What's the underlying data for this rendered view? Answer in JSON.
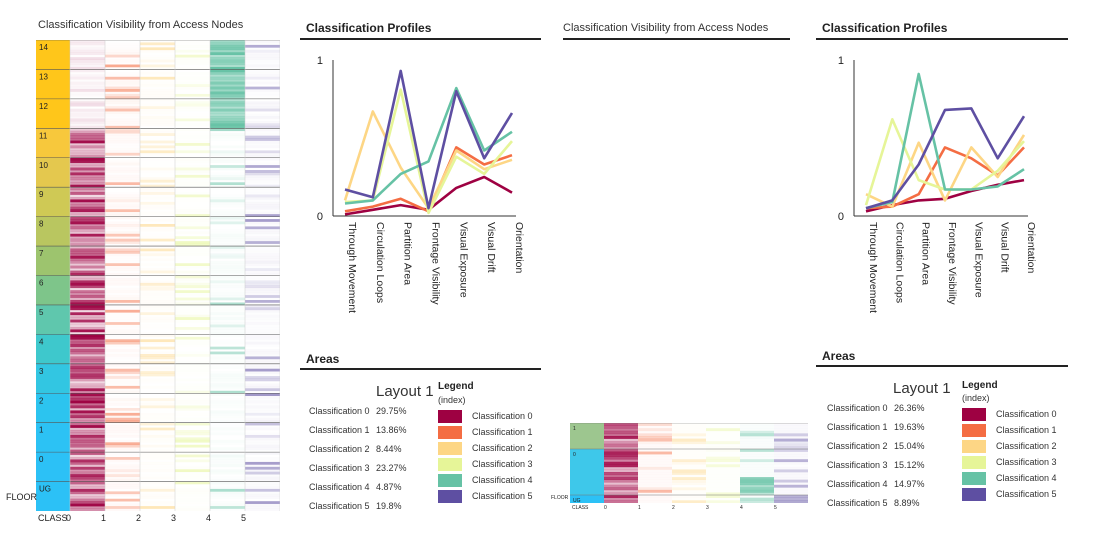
{
  "left_heatmap": {
    "title": "Classification Visibility from Access Nodes",
    "floor_label": "FLOOR",
    "class_label": "CLASS",
    "floors": [
      "14",
      "13",
      "12",
      "11",
      "10",
      "9",
      "8",
      "7",
      "6",
      "5",
      "4",
      "3",
      "2",
      "1",
      "0",
      "UG"
    ],
    "classes": [
      "0",
      "1",
      "2",
      "3",
      "4",
      "5"
    ]
  },
  "middle_heatmap": {
    "title": "Classification Visibility from Access Nodes",
    "floor_label": "FLOOR",
    "class_label": "CLASS",
    "floors": [
      "1",
      "0",
      "UG"
    ],
    "classes": [
      "0",
      "1",
      "2",
      "3",
      "4",
      "5"
    ]
  },
  "colors": {
    "class0": "#9e0142",
    "class1": "#f46d43",
    "class2": "#fdd685",
    "class3": "#e6f598",
    "class4": "#66c2a5",
    "class5": "#5e4fa2"
  },
  "profiles_title": "Classification Profiles",
  "areas_title": "Areas",
  "legend": {
    "title": "Legend",
    "subtitle": "(index)",
    "items": [
      "Classification 0",
      "Classification 1",
      "Classification 2",
      "Classification 3",
      "Classification 4",
      "Classification 5"
    ]
  },
  "layout1_left": {
    "title": "Layout 1",
    "areas": [
      {
        "label": "Classification 0",
        "value": "29.75%"
      },
      {
        "label": "Classification 1",
        "value": "13.86%"
      },
      {
        "label": "Classification 2",
        "value": "8.44%"
      },
      {
        "label": "Classification 3",
        "value": "23.27%"
      },
      {
        "label": "Classification 4",
        "value": "4.87%"
      },
      {
        "label": "Classification 5",
        "value": "19.8%"
      }
    ]
  },
  "layout1_right": {
    "title": "Layout 1",
    "areas": [
      {
        "label": "Classification 0",
        "value": "26.36%"
      },
      {
        "label": "Classification 1",
        "value": "19.63%"
      },
      {
        "label": "Classification 2",
        "value": "15.04%"
      },
      {
        "label": "Classification 3",
        "value": "15.12%"
      },
      {
        "label": "Classification 4",
        "value": "14.97%"
      },
      {
        "label": "Classification 5",
        "value": "8.89%"
      }
    ]
  },
  "chart_data": [
    {
      "type": "line",
      "title": "Classification Profiles",
      "categories": [
        "Through Movement",
        "Circulation Loops",
        "Partition Area",
        "Frontage Visibility",
        "Visual Exposure",
        "Visual Drift",
        "Orientation"
      ],
      "ylim": [
        0,
        1
      ],
      "yticks": [
        "0",
        "1"
      ],
      "series": [
        {
          "name": "Classification 0",
          "values": [
            0.01,
            0.04,
            0.07,
            0.04,
            0.18,
            0.25,
            0.15
          ]
        },
        {
          "name": "Classification 1",
          "values": [
            0.03,
            0.06,
            0.11,
            0.03,
            0.44,
            0.33,
            0.39
          ]
        },
        {
          "name": "Classification 2",
          "values": [
            0.1,
            0.67,
            0.31,
            0.05,
            0.42,
            0.3,
            0.36
          ]
        },
        {
          "name": "Classification 3",
          "values": [
            0.09,
            0.1,
            0.81,
            0.02,
            0.38,
            0.27,
            0.48
          ]
        },
        {
          "name": "Classification 4",
          "values": [
            0.08,
            0.1,
            0.27,
            0.35,
            0.82,
            0.42,
            0.54
          ]
        },
        {
          "name": "Classification 5",
          "values": [
            0.17,
            0.12,
            0.93,
            0.05,
            0.8,
            0.37,
            0.66
          ]
        }
      ]
    },
    {
      "type": "line",
      "title": "Classification Profiles",
      "categories": [
        "Through Movement",
        "Circulation Loops",
        "Partition Area",
        "Frontage Visibility",
        "Visual Exposure",
        "Visual Drift",
        "Orientation"
      ],
      "ylim": [
        0,
        1
      ],
      "yticks": [
        "0",
        "1"
      ],
      "series": [
        {
          "name": "Classification 0",
          "values": [
            0.03,
            0.07,
            0.1,
            0.11,
            0.16,
            0.2,
            0.23
          ]
        },
        {
          "name": "Classification 1",
          "values": [
            0.05,
            0.06,
            0.14,
            0.44,
            0.37,
            0.26,
            0.44
          ]
        },
        {
          "name": "Classification 2",
          "values": [
            0.14,
            0.06,
            0.47,
            0.1,
            0.44,
            0.25,
            0.52
          ]
        },
        {
          "name": "Classification 3",
          "values": [
            0.07,
            0.62,
            0.23,
            0.17,
            0.17,
            0.29,
            0.48
          ]
        },
        {
          "name": "Classification 4",
          "values": [
            0.05,
            0.09,
            0.91,
            0.17,
            0.17,
            0.19,
            0.3
          ]
        },
        {
          "name": "Classification 5",
          "values": [
            0.05,
            0.1,
            0.33,
            0.68,
            0.69,
            0.37,
            0.64
          ]
        }
      ]
    }
  ]
}
